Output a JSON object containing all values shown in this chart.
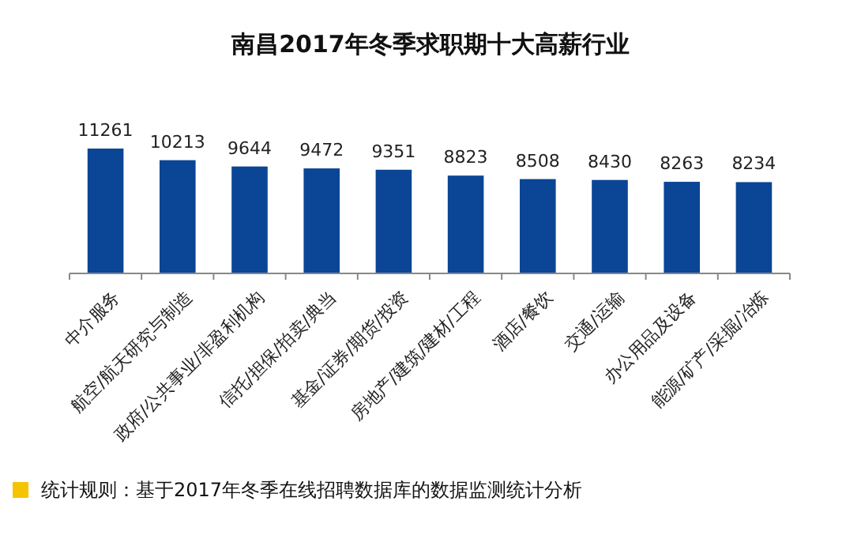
{
  "chart_data": {
    "type": "bar",
    "title": "南昌2017年冬季求职期十大高薪行业",
    "categories": [
      "中介服务",
      "航空/航天研究与制造",
      "政府/公共事业/非盈利机构",
      "信托/担保/拍卖/典当",
      "基金/证券/期货/投资",
      "房地产/建筑/建材/工程",
      "酒店/餐饮",
      "交通/运输",
      "办公用品及设备",
      "能源/矿产/采掘/冶炼"
    ],
    "values": [
      11261,
      10213,
      9644,
      9472,
      9351,
      8823,
      8508,
      8430,
      8263,
      8234
    ],
    "color": "#0b4595",
    "data_labels": true,
    "annotations": [
      "统计规则：基于2017年冬季在线招聘数据库的数据监测统计分析"
    ]
  }
}
